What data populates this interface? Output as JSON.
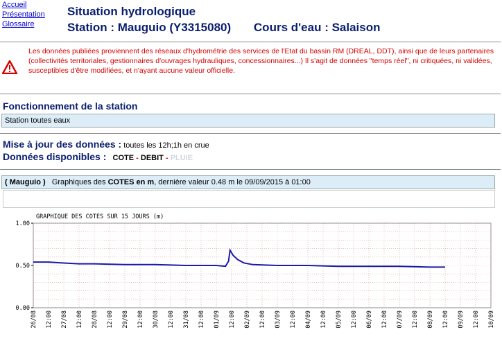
{
  "nav": {
    "links": [
      "Accueil",
      "Présentation",
      "Glossaire"
    ]
  },
  "header": {
    "title": "Situation hydrologique",
    "station": "Station : Mauguio (Y3315080)",
    "river": "Cours d'eau : Salaison"
  },
  "warning": {
    "text": "Les données publiées proviennent des réseaux d'hydrométrie des services de l'Etat du bassin RM (DREAL, DDT), ainsi que de leurs partenaires (collectivités territoriales, gestionnaires d'ouvrages hydrauliques, concessionnaires...) Il s'agit de données \"temps réel\", ni critiquées, ni validées, susceptibles d'être modifiées, et n'ayant aucune valeur officielle."
  },
  "fonctionnement": {
    "title": "Fonctionnement de la station",
    "value": "Station toutes eaux"
  },
  "update": {
    "label": "Mise à jour des données :",
    "value": "toutes les 12h;1h en crue"
  },
  "available": {
    "label": "Données disponibles :",
    "cote": "COTE",
    "debit": "DEBIT",
    "pluie": "PLUIE",
    "sep": "-"
  },
  "graph_header": {
    "station": "( Mauguio )",
    "text1": "Graphiques des",
    "bold": "COTES en m",
    "text2": ", dernière valeur 0.48 m le 09/09/2015 à 01:00"
  },
  "chart_data": {
    "type": "line",
    "title": "GRAPHIQUE DES COTES SUR 15 JOURS (m)",
    "ylim": [
      0,
      1
    ],
    "yticks": [
      "1.00",
      "0.50",
      "0.00"
    ],
    "xticks": [
      "26/08",
      "12:00",
      "27/08",
      "12:00",
      "28/08",
      "12:00",
      "29/08",
      "12:00",
      "30/08",
      "12:00",
      "31/08",
      "12:00",
      "01/09",
      "12:00",
      "02/09",
      "12:00",
      "03/09",
      "12:00",
      "04/09",
      "12:00",
      "05/09",
      "12:00",
      "06/09",
      "12:00",
      "07/09",
      "12:00",
      "08/09",
      "12:00",
      "09/09",
      "12:00",
      "10/09"
    ],
    "grid": true,
    "x": [
      0,
      0.5,
      0.9,
      1.5,
      2.0,
      3.0,
      4.0,
      5.0,
      6.0,
      6.3,
      6.4,
      6.45,
      6.55,
      6.7,
      6.9,
      7.2,
      8.0,
      9.0,
      10.0,
      11.0,
      12.0,
      13.0,
      13.5
    ],
    "values": [
      0.54,
      0.54,
      0.53,
      0.52,
      0.52,
      0.51,
      0.51,
      0.5,
      0.5,
      0.49,
      0.55,
      0.68,
      0.62,
      0.57,
      0.53,
      0.51,
      0.5,
      0.5,
      0.49,
      0.49,
      0.49,
      0.48,
      0.48
    ],
    "color": "#1a1aa6"
  }
}
